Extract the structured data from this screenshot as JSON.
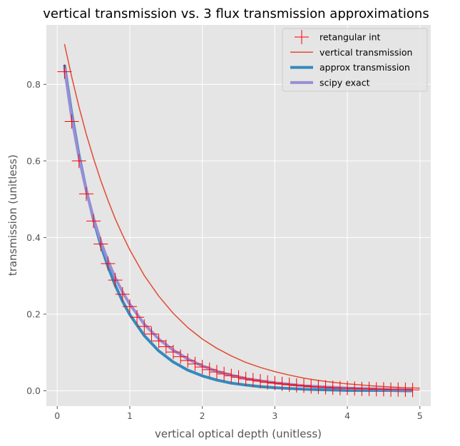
{
  "chart_data": {
    "type": "line",
    "title": "vertical transmission vs. 3 flux transmission approximations",
    "xlabel": "vertical optical depth (unitless)",
    "ylabel": "transmission (unitless)",
    "xlim": [
      -0.15,
      5.15
    ],
    "ylim": [
      -0.04,
      0.955
    ],
    "xticks": [
      0,
      1,
      2,
      3,
      4,
      5
    ],
    "xtick_labels": [
      "0",
      "1",
      "2",
      "3",
      "4",
      "5"
    ],
    "yticks": [
      0.0,
      0.2,
      0.4,
      0.6,
      0.8
    ],
    "ytick_labels": [
      "0.0",
      "0.2",
      "0.4",
      "0.6",
      "0.8"
    ],
    "grid": true,
    "legend_position": "top-right",
    "colors": {
      "background": "#e5e5e5",
      "grid": "#ffffff",
      "retangular_int": "#ff0000",
      "vertical_transmission": "#e24a33",
      "approx_transmission": "#348abd",
      "scipy_exact": "#988ed5"
    },
    "series": [
      {
        "name": "retangular int",
        "style": "marker-plus",
        "x": [
          0.1,
          0.2,
          0.3,
          0.4,
          0.5,
          0.6,
          0.7,
          0.8,
          0.9,
          1.0,
          1.1,
          1.2,
          1.3,
          1.4,
          1.5,
          1.6,
          1.7,
          1.8,
          1.9,
          2.0,
          2.1,
          2.2,
          2.3,
          2.4,
          2.5,
          2.6,
          2.7,
          2.8,
          2.9,
          3.0,
          3.1,
          3.2,
          3.3,
          3.4,
          3.5,
          3.6,
          3.7,
          3.8,
          3.9,
          4.0,
          4.1,
          4.2,
          4.3,
          4.4,
          4.5,
          4.6,
          4.7,
          4.8,
          4.9
        ],
        "y": [
          0.833,
          0.703,
          0.6,
          0.514,
          0.443,
          0.383,
          0.332,
          0.289,
          0.252,
          0.22,
          0.192,
          0.168,
          0.148,
          0.13,
          0.115,
          0.101,
          0.089,
          0.079,
          0.07,
          0.062,
          0.055,
          0.049,
          0.044,
          0.039,
          0.035,
          0.031,
          0.028,
          0.025,
          0.022,
          0.02,
          0.018,
          0.016,
          0.014,
          0.013,
          0.011,
          0.01,
          0.009,
          0.008,
          0.007,
          0.007,
          0.006,
          0.005,
          0.005,
          0.004,
          0.004,
          0.003,
          0.003,
          0.003,
          0.002
        ]
      },
      {
        "name": "vertical transmission",
        "style": "line-thin",
        "x": [
          0.1,
          0.2,
          0.3,
          0.4,
          0.5,
          0.6,
          0.7,
          0.8,
          0.9,
          1.0,
          1.2,
          1.4,
          1.6,
          1.8,
          2.0,
          2.2,
          2.4,
          2.6,
          2.8,
          3.0,
          3.2,
          3.4,
          3.6,
          3.8,
          4.0,
          4.2,
          4.4,
          4.6,
          4.8,
          5.0
        ],
        "y": [
          0.905,
          0.819,
          0.741,
          0.67,
          0.607,
          0.549,
          0.497,
          0.449,
          0.407,
          0.368,
          0.301,
          0.247,
          0.202,
          0.165,
          0.135,
          0.111,
          0.091,
          0.074,
          0.061,
          0.05,
          0.041,
          0.033,
          0.027,
          0.022,
          0.018,
          0.015,
          0.012,
          0.01,
          0.008,
          0.007
        ]
      },
      {
        "name": "approx transmission",
        "style": "line-thick",
        "x": [
          0.1,
          0.2,
          0.3,
          0.4,
          0.5,
          0.6,
          0.7,
          0.8,
          0.9,
          1.0,
          1.2,
          1.4,
          1.6,
          1.8,
          2.0,
          2.2,
          2.4,
          2.6,
          2.8,
          3.0,
          3.2,
          3.4,
          3.6,
          3.8,
          4.0,
          4.2,
          4.4,
          4.6,
          4.8,
          4.9
        ],
        "y": [
          0.851,
          0.724,
          0.616,
          0.525,
          0.447,
          0.38,
          0.324,
          0.275,
          0.234,
          0.199,
          0.144,
          0.104,
          0.075,
          0.054,
          0.039,
          0.028,
          0.02,
          0.015,
          0.011,
          0.008,
          0.006,
          0.004,
          0.003,
          0.002,
          0.001,
          0.001,
          0.001,
          0.001,
          0.0,
          0.0
        ]
      },
      {
        "name": "scipy exact",
        "style": "line-thick",
        "x": [
          0.1,
          0.2,
          0.3,
          0.4,
          0.5,
          0.6,
          0.7,
          0.8,
          0.9,
          1.0,
          1.2,
          1.4,
          1.6,
          1.8,
          2.0,
          2.2,
          2.4,
          2.6,
          2.8,
          3.0,
          3.2,
          3.4,
          3.6,
          3.8,
          4.0,
          4.2,
          4.4,
          4.6,
          4.8,
          4.9
        ],
        "y": [
          0.843,
          0.713,
          0.609,
          0.523,
          0.451,
          0.39,
          0.339,
          0.295,
          0.258,
          0.226,
          0.174,
          0.135,
          0.106,
          0.083,
          0.065,
          0.051,
          0.041,
          0.032,
          0.026,
          0.021,
          0.017,
          0.013,
          0.011,
          0.009,
          0.007,
          0.006,
          0.005,
          0.004,
          0.003,
          0.003
        ]
      }
    ]
  }
}
